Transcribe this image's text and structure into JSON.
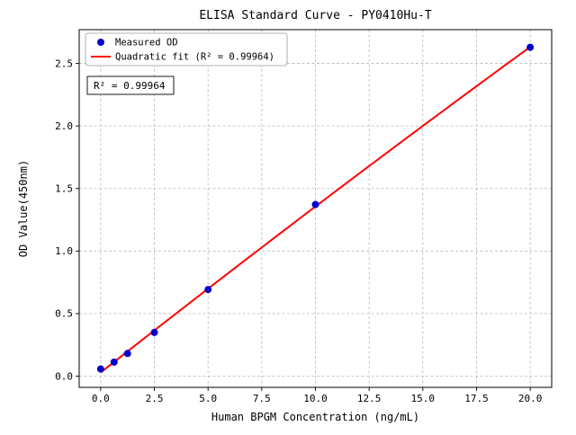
{
  "chart_data": {
    "type": "scatter",
    "title": "ELISA Standard Curve - PY0410Hu-T",
    "xlabel": "Human BPGM Concentration (ng/mL)",
    "ylabel": "OD Value(450nm)",
    "xlim": [
      -1,
      21
    ],
    "ylim": [
      -0.09,
      2.77
    ],
    "xticks": [
      0,
      2.5,
      5,
      7.5,
      10,
      12.5,
      15,
      17.5,
      20
    ],
    "yticks": [
      0,
      0.5,
      1,
      1.5,
      2,
      2.5
    ],
    "grid": true,
    "legend_position": "upper left",
    "series": [
      {
        "name": "Measured OD",
        "type": "scatter",
        "color": "#0000cd",
        "x": [
          0,
          0.625,
          1.25,
          2.5,
          5,
          10,
          20
        ],
        "y": [
          0.057,
          0.112,
          0.181,
          0.349,
          0.692,
          1.372,
          2.629
        ]
      },
      {
        "name": "Quadratic fit (R² = 0.99964)",
        "type": "line",
        "fit": "quadratic-least-squares-of-measured-od",
        "color": "#ff0000"
      }
    ],
    "annotation": {
      "text": "R² = 0.99964"
    },
    "colors": {
      "background": "#ffffff",
      "grid": "#b8b8b8",
      "text": "#000000",
      "point": "#0000cd",
      "fit_line": "#ff0000"
    }
  }
}
